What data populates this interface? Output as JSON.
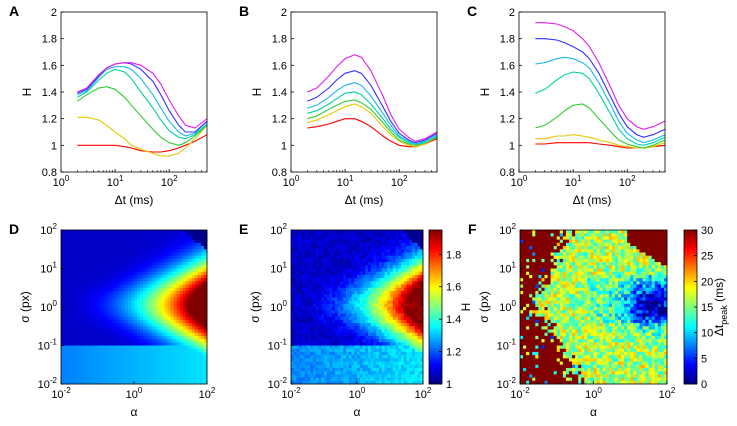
{
  "figure": {
    "panel_labels": [
      "A",
      "B",
      "C",
      "D",
      "E",
      "F"
    ]
  },
  "chart_data": [
    {
      "type": "line",
      "panel": "A",
      "xlabel": "Δt (ms)",
      "ylabel": "H",
      "xscale": "log",
      "xlim": [
        1,
        500
      ],
      "ylim": [
        0.8,
        2
      ],
      "xticks": [
        "10^0",
        "10^1",
        "10^2"
      ],
      "yticks": [
        "0.8",
        "1",
        "1.2",
        "1.4",
        "1.6",
        "1.8",
        "2"
      ],
      "x": [
        2,
        3,
        5,
        7,
        10,
        15,
        20,
        30,
        50,
        70,
        100,
        150,
        200,
        300,
        500
      ],
      "series": [
        {
          "name": "red",
          "color": "#ff0000",
          "values": [
            1.0,
            1.0,
            1.0,
            1.0,
            1.0,
            0.99,
            0.98,
            0.96,
            0.95,
            0.95,
            0.96,
            0.98,
            1.0,
            1.03,
            1.08
          ]
        },
        {
          "name": "yellow",
          "color": "#e6c800",
          "values": [
            1.21,
            1.21,
            1.19,
            1.15,
            1.1,
            1.05,
            1.0,
            0.97,
            0.94,
            0.92,
            0.92,
            0.94,
            0.98,
            1.05,
            1.15
          ]
        },
        {
          "name": "green",
          "color": "#33cc33",
          "values": [
            1.33,
            1.38,
            1.43,
            1.44,
            1.42,
            1.36,
            1.3,
            1.22,
            1.12,
            1.06,
            1.02,
            1.0,
            1.02,
            1.07,
            1.15
          ]
        },
        {
          "name": "cyan-green",
          "color": "#00d3a0",
          "values": [
            1.36,
            1.4,
            1.49,
            1.54,
            1.57,
            1.55,
            1.5,
            1.4,
            1.28,
            1.19,
            1.11,
            1.06,
            1.05,
            1.08,
            1.16
          ]
        },
        {
          "name": "cyan",
          "color": "#1cb8e8",
          "values": [
            1.38,
            1.41,
            1.51,
            1.57,
            1.59,
            1.59,
            1.57,
            1.5,
            1.38,
            1.28,
            1.18,
            1.1,
            1.07,
            1.09,
            1.18
          ]
        },
        {
          "name": "blue",
          "color": "#3232ff",
          "values": [
            1.39,
            1.42,
            1.52,
            1.58,
            1.61,
            1.62,
            1.61,
            1.57,
            1.48,
            1.38,
            1.26,
            1.15,
            1.1,
            1.1,
            1.18
          ]
        },
        {
          "name": "magenta",
          "color": "#e61ee6",
          "values": [
            1.4,
            1.43,
            1.53,
            1.58,
            1.61,
            1.62,
            1.62,
            1.6,
            1.54,
            1.46,
            1.34,
            1.22,
            1.15,
            1.13,
            1.2
          ]
        }
      ]
    },
    {
      "type": "line",
      "panel": "B",
      "xlabel": "Δt (ms)",
      "ylabel": "H",
      "xscale": "log",
      "xlim": [
        1,
        500
      ],
      "ylim": [
        0.8,
        2
      ],
      "xticks": [
        "10^0",
        "10^1",
        "10^2"
      ],
      "yticks": [
        "0.8",
        "1",
        "1.2",
        "1.4",
        "1.6",
        "1.8",
        "2"
      ],
      "x": [
        2,
        3,
        5,
        7,
        10,
        15,
        20,
        30,
        50,
        70,
        100,
        150,
        200,
        300,
        500
      ],
      "series": [
        {
          "name": "red",
          "color": "#ff0000",
          "values": [
            1.13,
            1.14,
            1.16,
            1.18,
            1.2,
            1.2,
            1.18,
            1.14,
            1.07,
            1.03,
            1.0,
            0.99,
            0.99,
            1.01,
            1.05
          ]
        },
        {
          "name": "yellow",
          "color": "#e6c800",
          "values": [
            1.17,
            1.19,
            1.23,
            1.26,
            1.29,
            1.31,
            1.29,
            1.24,
            1.14,
            1.08,
            1.03,
            1.0,
            0.99,
            1.01,
            1.06
          ]
        },
        {
          "name": "green",
          "color": "#33cc33",
          "values": [
            1.2,
            1.22,
            1.27,
            1.3,
            1.33,
            1.34,
            1.32,
            1.27,
            1.17,
            1.1,
            1.04,
            1.01,
            1.0,
            1.02,
            1.06
          ]
        },
        {
          "name": "cyan-green",
          "color": "#00d3a0",
          "values": [
            1.24,
            1.26,
            1.31,
            1.35,
            1.39,
            1.4,
            1.38,
            1.31,
            1.2,
            1.12,
            1.06,
            1.02,
            1.01,
            1.02,
            1.07
          ]
        },
        {
          "name": "cyan",
          "color": "#1cb8e8",
          "values": [
            1.28,
            1.3,
            1.36,
            1.41,
            1.45,
            1.47,
            1.45,
            1.37,
            1.24,
            1.15,
            1.07,
            1.03,
            1.01,
            1.03,
            1.08
          ]
        },
        {
          "name": "blue",
          "color": "#3232ff",
          "values": [
            1.33,
            1.36,
            1.43,
            1.49,
            1.54,
            1.56,
            1.54,
            1.45,
            1.29,
            1.18,
            1.09,
            1.04,
            1.02,
            1.04,
            1.09
          ]
        },
        {
          "name": "magenta",
          "color": "#e61ee6",
          "values": [
            1.4,
            1.43,
            1.52,
            1.59,
            1.65,
            1.68,
            1.66,
            1.56,
            1.37,
            1.23,
            1.12,
            1.06,
            1.03,
            1.05,
            1.1
          ]
        }
      ]
    },
    {
      "type": "line",
      "panel": "C",
      "xlabel": "Δt (ms)",
      "ylabel": "H",
      "xscale": "log",
      "xlim": [
        1,
        500
      ],
      "ylim": [
        0.8,
        2
      ],
      "xticks": [
        "10^0",
        "10^1",
        "10^2"
      ],
      "yticks": [
        "0.8",
        "1",
        "1.2",
        "1.4",
        "1.6",
        "1.8",
        "2"
      ],
      "x": [
        2,
        3,
        5,
        7,
        10,
        15,
        20,
        30,
        50,
        70,
        100,
        150,
        200,
        300,
        500
      ],
      "series": [
        {
          "name": "red",
          "color": "#ff0000",
          "values": [
            1.01,
            1.01,
            1.02,
            1.02,
            1.02,
            1.02,
            1.02,
            1.01,
            1.0,
            0.99,
            0.98,
            0.98,
            0.98,
            0.99,
            1.0
          ]
        },
        {
          "name": "yellow",
          "color": "#e6c800",
          "values": [
            1.05,
            1.05,
            1.07,
            1.07,
            1.08,
            1.07,
            1.06,
            1.04,
            1.02,
            1.0,
            0.99,
            0.98,
            0.98,
            0.99,
            1.02
          ]
        },
        {
          "name": "green",
          "color": "#33cc33",
          "values": [
            1.13,
            1.15,
            1.21,
            1.26,
            1.3,
            1.31,
            1.28,
            1.2,
            1.1,
            1.04,
            1.01,
            0.99,
            0.98,
            1.0,
            1.04
          ]
        },
        {
          "name": "cyan-green",
          "color": "#00d3a0",
          "values": [
            1.39,
            1.42,
            1.49,
            1.53,
            1.55,
            1.54,
            1.5,
            1.39,
            1.23,
            1.12,
            1.05,
            1.01,
            1.0,
            1.02,
            1.06
          ]
        },
        {
          "name": "cyan",
          "color": "#1cb8e8",
          "values": [
            1.61,
            1.62,
            1.65,
            1.66,
            1.65,
            1.62,
            1.58,
            1.47,
            1.3,
            1.18,
            1.09,
            1.04,
            1.02,
            1.04,
            1.08
          ]
        },
        {
          "name": "blue",
          "color": "#3232ff",
          "values": [
            1.8,
            1.8,
            1.79,
            1.77,
            1.74,
            1.7,
            1.65,
            1.54,
            1.36,
            1.24,
            1.14,
            1.08,
            1.06,
            1.08,
            1.12
          ]
        },
        {
          "name": "magenta",
          "color": "#e61ee6",
          "values": [
            1.92,
            1.92,
            1.91,
            1.89,
            1.86,
            1.8,
            1.74,
            1.62,
            1.43,
            1.3,
            1.2,
            1.14,
            1.12,
            1.14,
            1.18
          ]
        }
      ]
    },
    {
      "type": "heatmap",
      "panel": "D",
      "xlabel": "α",
      "ylabel": "σ (px)",
      "xscale": "log",
      "yscale": "log",
      "xlim": [
        0.01,
        100
      ],
      "ylim": [
        0.01,
        100
      ],
      "xticks": [
        "10^-2",
        "10^0",
        "10^2"
      ],
      "yticks": [
        "10^-2",
        "10^-1",
        "10^0",
        "10^1",
        "10^2"
      ],
      "color_range": [
        1,
        1.95
      ],
      "value": "H",
      "description": "smooth field: H rises toward high α and σ around 1 px; upper-right corner truncated"
    },
    {
      "type": "heatmap",
      "panel": "E",
      "xlabel": "α",
      "ylabel": "σ (px)",
      "xscale": "log",
      "yscale": "log",
      "xlim": [
        0.01,
        100
      ],
      "ylim": [
        0.01,
        100
      ],
      "xticks": [
        "10^-2",
        "10^0",
        "10^2"
      ],
      "yticks": [
        "10^-2",
        "10^-1",
        "10^0",
        "10^1",
        "10^2"
      ],
      "color_range": [
        1,
        1.95
      ],
      "value": "H",
      "description": "same as D with pixel noise"
    },
    {
      "type": "heatmap",
      "panel": "F",
      "xlabel": "α",
      "ylabel": "σ (px)",
      "xscale": "log",
      "yscale": "log",
      "xlim": [
        0.01,
        100
      ],
      "ylim": [
        0.01,
        100
      ],
      "xticks": [
        "10^-2",
        "10^0",
        "10^2"
      ],
      "yticks": [
        "10^-2",
        "10^-1",
        "10^0",
        "10^1",
        "10^2"
      ],
      "color_range": [
        0,
        30
      ],
      "value": "Δt_peak (ms)",
      "description": "noisy peak-lag map; low α and top-right saturated at 30, blue minimum near σ≈1, α≈30"
    }
  ],
  "colorbars": [
    {
      "panel": "E",
      "label": "H",
      "ticks": [
        "1",
        "1.2",
        "1.4",
        "1.6",
        "1.8"
      ],
      "range": [
        1,
        1.95
      ]
    },
    {
      "panel": "F",
      "label_main": "Δt",
      "label_sub": "peak",
      "label_unit": " (ms)",
      "ticks": [
        "0",
        "5",
        "10",
        "15",
        "20",
        "25",
        "30"
      ],
      "range": [
        0,
        30
      ]
    }
  ]
}
